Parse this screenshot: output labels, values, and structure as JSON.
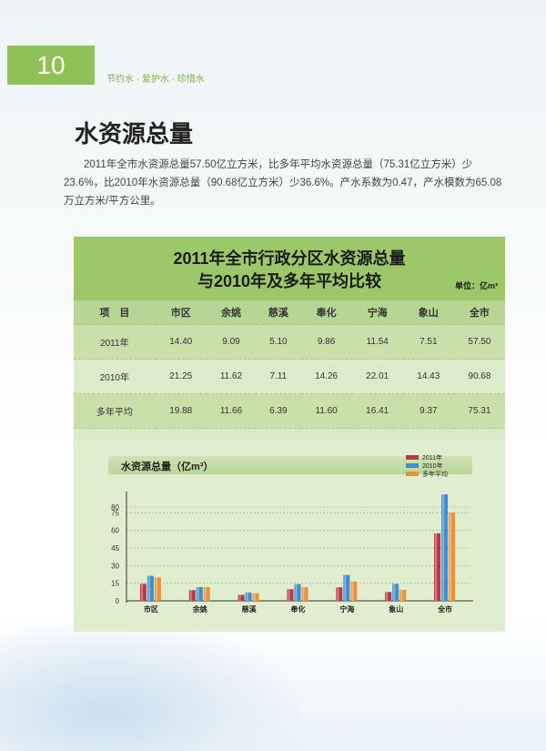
{
  "page": {
    "number": "10",
    "slogan": "节约水 · 爱护水 · 珍惜水"
  },
  "section": {
    "title": "水资源总量",
    "intro": "2011年全市水资源总量57.50亿立方米，比多年平均水资源总量（75.31亿立方米）少23.6%，比2010年水资源总量（90.68亿立方米）少36.6%。产水系数为0.47，产水模数为65.08万立方米/平方公里。"
  },
  "table": {
    "title_line1": "2011年全市行政分区水资源总量",
    "title_line2": "与2010年及多年平均比较",
    "unit": "单位：亿m³",
    "headers": [
      "项　目",
      "市区",
      "余姚",
      "慈溪",
      "奉化",
      "宁海",
      "象山",
      "全市"
    ],
    "rows": [
      [
        "2011年",
        "14.40",
        "9.09",
        "5.10",
        "9.86",
        "11.54",
        "7.51",
        "57.50"
      ],
      [
        "2010年",
        "21.25",
        "11.62",
        "7.11",
        "14.26",
        "22.01",
        "14.43",
        "90.68"
      ],
      [
        "多年平均",
        "19.88",
        "11.66",
        "6.39",
        "11.60",
        "16.41",
        "9.37",
        "75.31"
      ]
    ]
  },
  "chart_data": {
    "type": "bar",
    "title": "水资源总量（亿m³）",
    "categories": [
      "市区",
      "余姚",
      "慈溪",
      "奉化",
      "宁海",
      "象山",
      "全市"
    ],
    "series": [
      {
        "name": "2011年",
        "values": [
          14.4,
          9.09,
          5.1,
          9.86,
          11.54,
          7.51,
          57.5
        ],
        "color": "#b8394a"
      },
      {
        "name": "2010年",
        "values": [
          21.25,
          11.62,
          7.11,
          14.26,
          22.01,
          14.43,
          90.68
        ],
        "color": "#3d8fd4"
      },
      {
        "name": "多年平均",
        "values": [
          19.88,
          11.66,
          6.39,
          11.6,
          16.41,
          9.37,
          75.31
        ],
        "color": "#e8923a"
      }
    ],
    "yticks": [
      0,
      15,
      30,
      45,
      60,
      75,
      80
    ],
    "ylim": [
      0,
      90
    ],
    "grid": true,
    "legend": "top-right"
  }
}
